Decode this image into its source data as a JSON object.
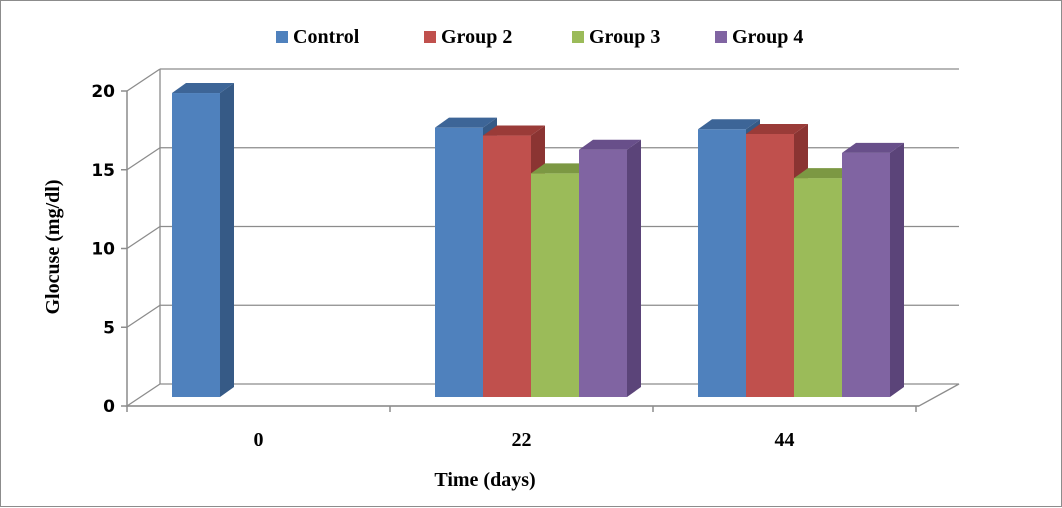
{
  "chart_data": {
    "type": "bar",
    "style": "3d-clustered-column",
    "categories": [
      "0",
      "22",
      "44"
    ],
    "series": [
      {
        "name": "Control",
        "values": [
          19.3,
          17.1,
          17.0
        ],
        "color": "#4f81bd",
        "side_color": "#365a86",
        "top_color": "#3d6597"
      },
      {
        "name": "Group 2",
        "values": [
          null,
          16.6,
          16.7
        ],
        "color": "#c0504d",
        "side_color": "#8b3432",
        "top_color": "#9a3b38"
      },
      {
        "name": "Group 3",
        "values": [
          null,
          14.2,
          13.9
        ],
        "color": "#9bbb59",
        "side_color": "#6f8a3b",
        "top_color": "#7c9843"
      },
      {
        "name": "Group 4",
        "values": [
          null,
          15.7,
          15.5
        ],
        "color": "#8064a2",
        "side_color": "#5b4479",
        "top_color": "#684f8a"
      }
    ],
    "xlabel": "Time (days)",
    "ylabel": "Glocuse (mg/dl)",
    "ylim": [
      0,
      20
    ],
    "yticks": [
      "0",
      "5",
      "10",
      "15",
      "20"
    ],
    "grid": true,
    "legend_position": "top"
  }
}
